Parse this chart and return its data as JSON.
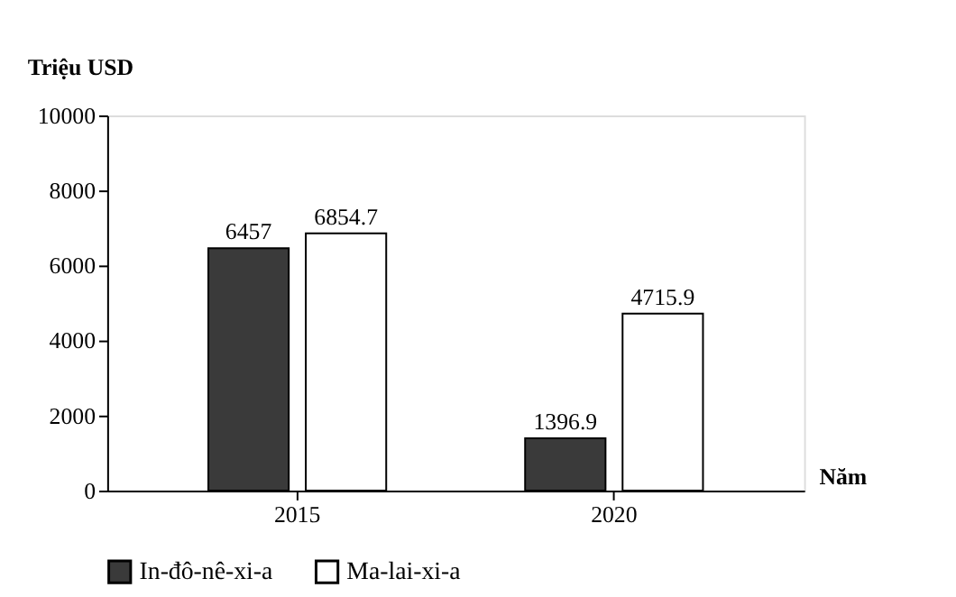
{
  "chart_data": {
    "type": "bar",
    "ylabel": "Triệu USD",
    "xlabel": "Năm",
    "categories": [
      "2015",
      "2020"
    ],
    "series": [
      {
        "name": "In-đô-nê-xi-a",
        "color": "#3a3a3a",
        "values": [
          6457,
          1396.9
        ]
      },
      {
        "name": "Ma-lai-xi-a",
        "color": "#ffffff",
        "values": [
          6854.7,
          4715.9
        ]
      }
    ],
    "ylim": [
      0,
      10000
    ],
    "yticks": [
      0,
      2000,
      4000,
      6000,
      8000,
      10000
    ],
    "grid": false,
    "legend": "bottom",
    "data_labels": true
  }
}
